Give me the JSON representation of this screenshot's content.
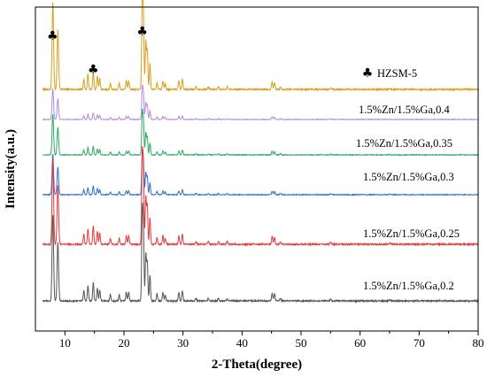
{
  "chart_data": {
    "type": "line",
    "xlabel": "2-Theta(degree)",
    "ylabel": "Intensity(a.u.)",
    "xlim": [
      5,
      80
    ],
    "xticks": [
      10,
      20,
      30,
      40,
      50,
      60,
      70,
      80
    ],
    "yticks_shown": false,
    "legend": {
      "symbol": "♣",
      "label": "HZSM-5",
      "placement": "right of top trace"
    },
    "peak_markers": [
      {
        "x": 7.9,
        "symbol": "♣"
      },
      {
        "x": 14.8,
        "symbol": "♣"
      },
      {
        "x": 23.1,
        "symbol": "♣"
      }
    ],
    "peaks": [
      [
        7.95,
        1.0
      ],
      [
        8.8,
        0.68
      ],
      [
        13.2,
        0.12
      ],
      [
        13.9,
        0.18
      ],
      [
        14.8,
        0.22
      ],
      [
        15.5,
        0.15
      ],
      [
        15.9,
        0.13
      ],
      [
        17.7,
        0.07
      ],
      [
        19.2,
        0.07
      ],
      [
        20.4,
        0.1
      ],
      [
        20.8,
        0.1
      ],
      [
        23.1,
        1.0
      ],
      [
        23.3,
        0.8
      ],
      [
        23.7,
        0.55
      ],
      [
        23.95,
        0.45
      ],
      [
        24.4,
        0.3
      ],
      [
        25.6,
        0.08
      ],
      [
        26.6,
        0.1
      ],
      [
        27.0,
        0.07
      ],
      [
        29.3,
        0.1
      ],
      [
        29.9,
        0.12
      ],
      [
        32.2,
        0.03
      ],
      [
        34.3,
        0.03
      ],
      [
        36.0,
        0.03
      ],
      [
        37.5,
        0.03
      ],
      [
        45.1,
        0.09
      ],
      [
        45.5,
        0.08
      ],
      [
        46.5,
        0.03
      ],
      [
        55.0,
        0.02
      ],
      [
        65.0,
        0.015
      ]
    ],
    "series": [
      {
        "name": "HZSM-5",
        "color": "#d4a020",
        "scale": 1.0,
        "label_text": "HZSM-5"
      },
      {
        "name": "1.5%Zn/1.5%Ga,0.4",
        "color": "#b38be0",
        "scale": 0.45
      },
      {
        "name": "1.5%Zn/1.5%Ga,0.35",
        "color": "#2eaa63",
        "scale": 0.55
      },
      {
        "name": "1.5%Zn/1.5%Ga,0.3",
        "color": "#2f6fcf",
        "scale": 0.55
      },
      {
        "name": "1.5%Zn/1.5%Ga,0.25",
        "color": "#e33b3b",
        "scale": 1.0
      },
      {
        "name": "1.5%Zn/1.5%Ga,0.2",
        "color": "#555555",
        "scale": 1.0
      }
    ]
  }
}
